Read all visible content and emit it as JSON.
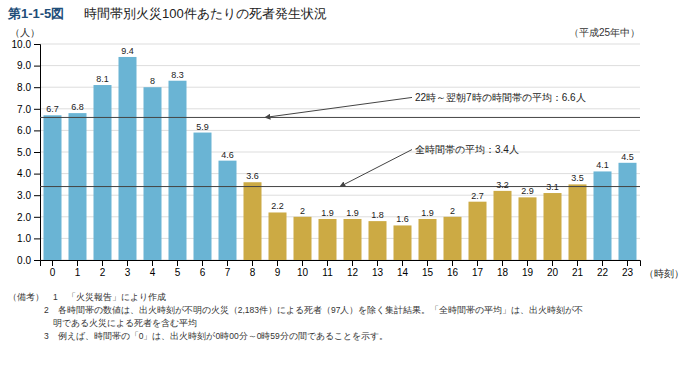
{
  "chart_data": {
    "type": "bar",
    "figure_number": "第1-1-5図",
    "title": "時間帯別火災100件あたりの死者発生状況",
    "subtitle": "（平成25年中）",
    "x_label": "（時刻）",
    "y_label": "（人）",
    "categories": [
      "0",
      "1",
      "2",
      "3",
      "4",
      "5",
      "6",
      "7",
      "8",
      "9",
      "10",
      "11",
      "12",
      "13",
      "14",
      "15",
      "16",
      "17",
      "18",
      "19",
      "20",
      "21",
      "22",
      "23"
    ],
    "values": [
      6.7,
      6.8,
      8.1,
      9.4,
      8.0,
      8.3,
      5.9,
      4.6,
      3.6,
      2.2,
      2.0,
      1.9,
      1.9,
      1.8,
      1.6,
      1.9,
      2.0,
      2.7,
      3.2,
      2.9,
      3.1,
      3.5,
      4.1,
      4.5
    ],
    "colors": [
      "#6ab4d4",
      "#6ab4d4",
      "#6ab4d4",
      "#6ab4d4",
      "#6ab4d4",
      "#6ab4d4",
      "#6ab4d4",
      "#6ab4d4",
      "#ccaa44",
      "#ccaa44",
      "#ccaa44",
      "#ccaa44",
      "#ccaa44",
      "#ccaa44",
      "#ccaa44",
      "#ccaa44",
      "#ccaa44",
      "#ccaa44",
      "#ccaa44",
      "#ccaa44",
      "#ccaa44",
      "#ccaa44",
      "#6ab4d4",
      "#6ab4d4"
    ],
    "data_labels": true,
    "ylim": [
      0,
      10
    ],
    "yticks": [
      {
        "value": 0,
        "label": "0.0"
      },
      {
        "value": 1,
        "label": "1.0"
      },
      {
        "value": 2,
        "label": "2.0"
      },
      {
        "value": 3,
        "label": "3.0"
      },
      {
        "value": 4,
        "label": "4.0"
      },
      {
        "value": 5,
        "label": "5.0"
      },
      {
        "value": 6,
        "label": "6.0"
      },
      {
        "value": 7,
        "label": "7.0"
      },
      {
        "value": 8,
        "label": "8.0"
      },
      {
        "value": 9,
        "label": "9.0"
      },
      {
        "value": 10,
        "label": "10.0"
      }
    ],
    "grid": true,
    "reference_lines": [
      {
        "value": 6.6,
        "label": "22時～翌朝7時の時間帯の平均：6.6人"
      },
      {
        "value": 3.4,
        "label": "全時間帯の平均：3.4人"
      }
    ],
    "notes": [
      "（備考）　1　「火災報告」により作成",
      "　　　　2　各時間帯の数値は、出火時刻が不明の火災（2,183件）による死者（97人）を除く集計結果。「全時間帯の平均」は、出火時刻が不",
      "　　　　　明である火災による死者を含む平均",
      "　　　　3　例えば、時間帯の「0」は、出火時刻が0時00分～0時59分の間であることを示す。"
    ]
  }
}
